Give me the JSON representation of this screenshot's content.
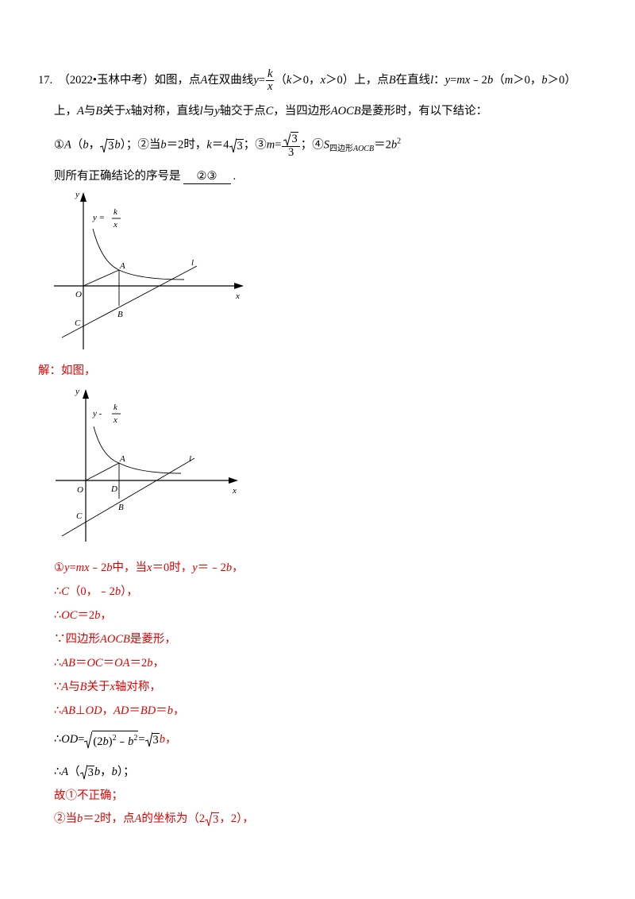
{
  "question": {
    "number": "17.",
    "line1": [
      "（2022•玉林中考）如图，点",
      "A",
      "在双曲线",
      "y",
      "=",
      "k",
      "x",
      "（",
      "k",
      "＞0，",
      "x",
      "＞0）上，点",
      "B",
      "在直线",
      "l",
      "：",
      "y",
      "=",
      "mx",
      "﹣2",
      "b",
      "（",
      "m",
      "＞0，",
      "b",
      "＞0）"
    ],
    "line2": [
      "上，",
      "A",
      "与",
      "B",
      "关于",
      "x",
      "轴对称，直线",
      "l",
      "与",
      "y",
      "轴交于点",
      "C",
      "，当四边形",
      "AOCB",
      "是菱形时，有以下结论："
    ],
    "line3": [
      "①",
      "A",
      "（",
      "b",
      "，",
      "3",
      "b",
      "）；②当",
      "b",
      "＝2时，",
      "k",
      "＝4",
      "3",
      "；③",
      "m",
      "=",
      "3",
      "3",
      "；④",
      "S",
      "四边形",
      "AOCB",
      "＝2",
      "b",
      "2"
    ],
    "line4": [
      "则所有正确结论的序号是",
      "②③",
      "."
    ]
  },
  "figure1": {
    "y_axis": "y",
    "formula": [
      "y =",
      "k",
      "x"
    ],
    "point_a": "A",
    "line_l": "l",
    "origin": "O",
    "x_axis": "x",
    "point_c": "C",
    "point_b": "B"
  },
  "solution": {
    "intro": "解：如图，",
    "lines": [
      [
        "①",
        "y",
        "=",
        "mx",
        "﹣2",
        "b",
        "中，当",
        "x",
        "＝0时，",
        "y",
        "＝﹣2",
        "b",
        "，"
      ],
      [
        "∴",
        "C",
        "（0，﹣2",
        "b",
        "），"
      ],
      [
        "∴",
        "OC",
        "＝2",
        "b",
        "，"
      ],
      [
        "∵四边形",
        "AOCB",
        "是菱形，"
      ],
      [
        "∴",
        "AB",
        "＝",
        "OC",
        "＝",
        "OA",
        "＝2",
        "b",
        "，"
      ],
      [
        "∵",
        "A",
        "与",
        "B",
        "关于",
        "x",
        "轴对称，"
      ],
      [
        "∴",
        "AB",
        "⊥",
        "OD",
        "，",
        "AD",
        "＝",
        "BD",
        "＝",
        "b",
        "，"
      ],
      [
        "∴",
        "OD",
        "=",
        "(2",
        "b",
        ")",
        "2",
        "﹣",
        "b",
        "2",
        "=",
        "3",
        "b",
        "，"
      ],
      [
        "∴",
        "A",
        "（",
        "3",
        "b",
        "，",
        "b",
        "）；"
      ],
      [
        "故①不正确；"
      ],
      [
        "②当",
        "b",
        "＝2时，点",
        "A",
        "的坐标为（2",
        "3",
        "，2），"
      ]
    ]
  },
  "figure2": {
    "y_axis": "y",
    "formula": [
      "y -",
      "k",
      "x"
    ],
    "point_a": "A",
    "line_l": "l",
    "origin": "O",
    "point_d": "D",
    "x_axis": "x",
    "point_c": "C",
    "point_b": "B"
  }
}
